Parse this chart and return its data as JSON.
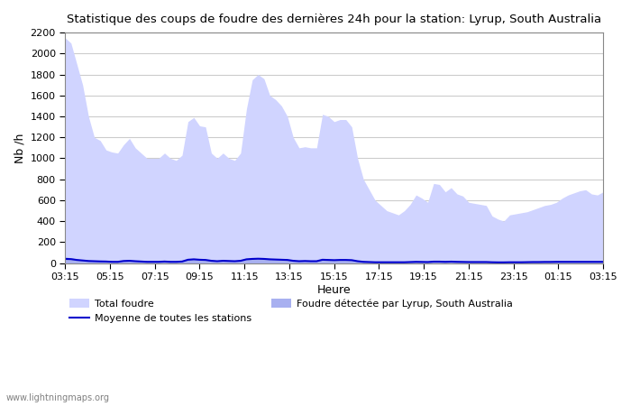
{
  "title": "Statistique des coups de foudre des dernières 24h pour la station: Lyrup, South Australia",
  "xlabel": "Heure",
  "ylabel": "Nb /h",
  "ylim": [
    0,
    2200
  ],
  "yticks": [
    0,
    200,
    400,
    600,
    800,
    1000,
    1200,
    1400,
    1600,
    1800,
    2000,
    2200
  ],
  "x_labels": [
    "03:15",
    "05:15",
    "07:15",
    "09:15",
    "11:15",
    "13:15",
    "15:15",
    "17:15",
    "19:15",
    "21:15",
    "23:15",
    "01:15",
    "03:15"
  ],
  "watermark": "www.lightningmaps.org",
  "total_foudre_color": "#d0d4ff",
  "local_foudre_color": "#a8b0f0",
  "moyenne_color": "#0000cc",
  "background_color": "#ffffff",
  "grid_color": "#cccccc",
  "total_foudre": [
    2150,
    2100,
    1900,
    1700,
    1400,
    1200,
    1170,
    1080,
    1060,
    1050,
    1130,
    1190,
    1100,
    1050,
    1000,
    1000,
    1000,
    1050,
    1000,
    980,
    1030,
    1350,
    1390,
    1310,
    1300,
    1050,
    1000,
    1050,
    1000,
    980,
    1050,
    1470,
    1750,
    1800,
    1760,
    1600,
    1560,
    1500,
    1400,
    1200,
    1100,
    1110,
    1100,
    1100,
    1420,
    1400,
    1350,
    1370,
    1370,
    1300,
    1000,
    800,
    700,
    600,
    550,
    500,
    480,
    460,
    500,
    560,
    650,
    620,
    580,
    760,
    750,
    680,
    720,
    660,
    640,
    580,
    570,
    560,
    550,
    450,
    420,
    400,
    460,
    470,
    480,
    490,
    510,
    530,
    550,
    560,
    580,
    620,
    650,
    670,
    690,
    700,
    660,
    650,
    680
  ],
  "local_foudre": [
    60,
    50,
    40,
    30,
    25,
    22,
    20,
    18,
    15,
    15,
    25,
    28,
    22,
    18,
    15,
    15,
    15,
    18,
    15,
    15,
    20,
    40,
    45,
    40,
    38,
    30,
    25,
    30,
    28,
    25,
    30,
    45,
    50,
    52,
    50,
    45,
    43,
    40,
    38,
    30,
    25,
    28,
    25,
    25,
    40,
    38,
    35,
    38,
    38,
    35,
    25,
    18,
    15,
    12,
    12,
    10,
    10,
    10,
    12,
    15,
    18,
    16,
    14,
    20,
    20,
    18,
    20,
    18,
    16,
    15,
    15,
    14,
    14,
    12,
    10,
    10,
    12,
    12,
    12,
    13,
    14,
    15,
    16,
    16,
    18,
    18,
    18,
    18,
    18,
    18,
    18,
    18,
    18
  ],
  "moyenne": [
    40,
    38,
    30,
    25,
    20,
    18,
    16,
    15,
    12,
    12,
    20,
    22,
    18,
    15,
    12,
    12,
    12,
    15,
    12,
    12,
    15,
    32,
    36,
    32,
    30,
    22,
    18,
    22,
    20,
    18,
    22,
    36,
    40,
    42,
    40,
    36,
    34,
    32,
    30,
    22,
    18,
    20,
    18,
    18,
    32,
    30,
    28,
    30,
    30,
    28,
    18,
    12,
    10,
    8,
    8,
    8,
    8,
    8,
    8,
    10,
    12,
    11,
    10,
    14,
    14,
    12,
    14,
    12,
    11,
    10,
    10,
    10,
    10,
    8,
    7,
    7,
    8,
    8,
    8,
    9,
    10,
    10,
    11,
    11,
    12,
    12,
    12,
    12,
    12,
    12,
    12,
    12,
    12
  ]
}
